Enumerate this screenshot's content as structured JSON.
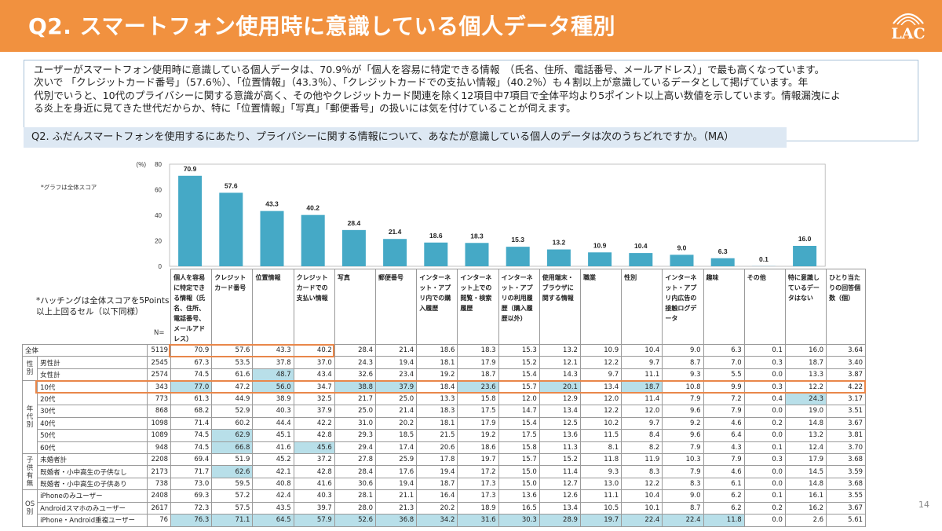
{
  "header": {
    "title": "Q2. スマートフォン使用時に意識している個人データ種別",
    "logo": "LAC"
  },
  "colors": {
    "header_bg": "#f1913f",
    "bar": "#45a9c6",
    "highlight": "#b8dfe9",
    "orange_box": "#e9874a"
  },
  "summary": {
    "lines": [
      "ユーザーがスマートフォン使用時に意識している個人データは、70.9％が「個人を容易に特定できる情報　（氏名、住所、電話番号、メールアドレス）」で最も高くなっています。",
      "次いで 「クレジットカード番号」（57.6％）、「位置情報」（43.3％）、「クレジットカードでの支払い情報」（40.2％）も４割以上が意識しているデータとして掲げています。年",
      "代別でいうと、10代のプライバシーに関する意識が高く、その他やクレジットカード関連を除く12項目中7項目で全体平均より5ポイント以上高い数値を示しています。情報漏洩によ",
      "る炎上を身近に見てきた世代だからか、特に「位置情報」「写真」「郵便番号」の扱いには気を付けていることが伺えます。"
    ]
  },
  "question": "Q2. ふだんスマートフォンを使用するにあたり、プライバシーに関する情報について、あなたが意識している個人のデータは次のうちどれですか。（MA）",
  "notes": {
    "graph_note": "*グラフは全体スコア",
    "hatch_line1": "*ハッチングは全体スコアを5Points",
    "hatch_line2": "以上上回るセル（以下同様）",
    "n_label": "N=",
    "page_number": "14"
  },
  "chart_data": {
    "type": "bar",
    "ylabel": "(%)",
    "ylim": [
      0,
      80
    ],
    "yticks": [
      "0",
      "20",
      "40",
      "60",
      "80"
    ],
    "categories": [
      "個人を容易に特定できる情報（氏名、住所、電話番号、メールアドレス）",
      "クレジットカード番号",
      "位置情報",
      "クレジットカードでの支払い情報",
      "写真",
      "郵便番号",
      "インターネット・アプリ内での購入履歴",
      "インターネット上での閲覧・検索履歴",
      "インターネット・アプリの利用履歴（購入履歴以外）",
      "使用端末・ブラウザに関する情報",
      "職業",
      "性別",
      "インターネット・アプリ内広告の接触ログデータ",
      "趣味",
      "その他",
      "特に意識しているデータはない"
    ],
    "values": [
      70.9,
      57.6,
      43.3,
      40.2,
      28.4,
      21.4,
      18.6,
      18.3,
      15.3,
      13.2,
      10.9,
      10.4,
      9.0,
      6.3,
      0.1,
      16.0
    ],
    "value_labels": [
      "70.9",
      "57.6",
      "43.3",
      "40.2",
      "28.4",
      "21.4",
      "18.6",
      "18.3",
      "15.3",
      "13.2",
      "10.9",
      "10.4",
      "9.0",
      "6.3",
      "0.1",
      "16.0"
    ]
  },
  "table": {
    "headers": [
      "個人を容易に特定できる情報（氏名、住所、電話番号、メールアドレス）",
      "クレジットカード番号",
      "位置情報",
      "クレジットカードでの支払い情報",
      "写真",
      "郵便番号",
      "インターネット・アプリ内での購入履歴",
      "インターネット上での閲覧・検索履歴",
      "インターネット・アプリの利用履歴（購入履歴以外）",
      "使用端末・ブラウザに関する情報",
      "職業",
      "性別",
      "インターネット・アプリ内広告の接触ログデータ",
      "趣味",
      "その他",
      "特に意識しているデータはない",
      "ひとり当たりの回答個数（個）"
    ],
    "groups": [
      {
        "label": "",
        "rows": [
          {
            "label": "全体",
            "n": "5119",
            "values": [
              "70.9",
              "57.6",
              "43.3",
              "40.2",
              "28.4",
              "21.4",
              "18.6",
              "18.3",
              "15.3",
              "13.2",
              "10.9",
              "10.4",
              "9.0",
              "6.3",
              "0.1",
              "16.0",
              "3.64"
            ],
            "hl": []
          }
        ]
      },
      {
        "label": "性別",
        "rows": [
          {
            "label": "男性計",
            "n": "2545",
            "values": [
              "67.3",
              "53.5",
              "37.8",
              "37.0",
              "24.3",
              "19.4",
              "18.1",
              "17.9",
              "15.2",
              "12.1",
              "12.2",
              "9.7",
              "8.7",
              "7.0",
              "0.3",
              "18.7",
              "3.40"
            ],
            "hl": []
          },
          {
            "label": "女性計",
            "n": "2574",
            "values": [
              "74.5",
              "61.6",
              "48.7",
              "43.4",
              "32.6",
              "23.4",
              "19.2",
              "18.7",
              "15.4",
              "14.3",
              "9.7",
              "11.1",
              "9.3",
              "5.5",
              "0.0",
              "13.3",
              "3.87"
            ],
            "hl": [
              2
            ]
          }
        ]
      },
      {
        "label": "年代別",
        "rows": [
          {
            "label": "10代",
            "n": "343",
            "values": [
              "77.0",
              "47.2",
              "56.0",
              "34.7",
              "38.8",
              "37.9",
              "18.4",
              "23.6",
              "15.7",
              "20.1",
              "13.4",
              "18.7",
              "10.8",
              "9.9",
              "0.3",
              "12.2",
              "4.22"
            ],
            "hl": [
              0,
              2,
              4,
              5,
              7,
              9,
              11
            ]
          },
          {
            "label": "20代",
            "n": "773",
            "values": [
              "61.3",
              "44.9",
              "38.9",
              "32.5",
              "21.7",
              "25.0",
              "13.3",
              "15.8",
              "12.0",
              "12.9",
              "12.0",
              "11.4",
              "7.9",
              "7.2",
              "0.4",
              "24.3",
              "3.17"
            ],
            "hl": [
              15
            ]
          },
          {
            "label": "30代",
            "n": "868",
            "values": [
              "68.2",
              "52.9",
              "40.3",
              "37.9",
              "25.0",
              "21.4",
              "18.3",
              "17.5",
              "14.7",
              "13.4",
              "12.2",
              "12.0",
              "9.6",
              "7.9",
              "0.0",
              "19.0",
              "3.51"
            ],
            "hl": []
          },
          {
            "label": "40代",
            "n": "1098",
            "values": [
              "71.4",
              "60.2",
              "44.4",
              "42.2",
              "31.0",
              "20.2",
              "18.1",
              "17.9",
              "15.4",
              "12.5",
              "10.2",
              "9.7",
              "9.2",
              "4.6",
              "0.2",
              "14.8",
              "3.67"
            ],
            "hl": []
          },
          {
            "label": "50代",
            "n": "1089",
            "values": [
              "74.5",
              "62.9",
              "45.1",
              "42.8",
              "29.3",
              "18.5",
              "21.5",
              "19.2",
              "17.5",
              "13.6",
              "11.5",
              "8.4",
              "9.6",
              "6.4",
              "0.0",
              "13.2",
              "3.81"
            ],
            "hl": [
              1
            ]
          },
          {
            "label": "60代",
            "n": "948",
            "values": [
              "74.5",
              "66.8",
              "41.6",
              "45.6",
              "29.4",
              "17.4",
              "20.6",
              "18.6",
              "15.8",
              "11.3",
              "8.1",
              "8.2",
              "7.9",
              "4.3",
              "0.1",
              "12.4",
              "3.70"
            ],
            "hl": [
              1,
              3
            ]
          }
        ]
      },
      {
        "label": "子供有無",
        "rows": [
          {
            "label": "未婚者計",
            "n": "2208",
            "values": [
              "69.4",
              "51.9",
              "45.2",
              "37.2",
              "27.8",
              "25.9",
              "17.8",
              "19.7",
              "15.7",
              "15.2",
              "11.8",
              "11.9",
              "10.3",
              "7.9",
              "0.3",
              "17.9",
              "3.68"
            ],
            "hl": []
          },
          {
            "label": "既婚者・小中高生の子供なし",
            "n": "2173",
            "values": [
              "71.7",
              "62.6",
              "42.1",
              "42.8",
              "28.4",
              "17.6",
              "19.4",
              "17.2",
              "15.0",
              "11.4",
              "9.3",
              "8.3",
              "7.9",
              "4.6",
              "0.0",
              "14.5",
              "3.59"
            ],
            "hl": [
              1
            ]
          },
          {
            "label": "既婚者・小中高生の子供あり",
            "n": "738",
            "values": [
              "73.0",
              "59.5",
              "40.8",
              "41.6",
              "30.6",
              "19.4",
              "18.7",
              "17.3",
              "15.0",
              "12.7",
              "13.0",
              "12.2",
              "8.3",
              "6.1",
              "0.0",
              "14.8",
              "3.68"
            ],
            "hl": []
          }
        ]
      },
      {
        "label": "OS別",
        "rows": [
          {
            "label": "iPhoneのみユーザー",
            "n": "2408",
            "values": [
              "69.3",
              "57.2",
              "42.4",
              "40.3",
              "28.1",
              "21.1",
              "16.4",
              "17.3",
              "13.6",
              "12.6",
              "11.1",
              "10.4",
              "9.0",
              "6.2",
              "0.1",
              "16.1",
              "3.55"
            ],
            "hl": []
          },
          {
            "label": "Androidスマホのみユーザー",
            "n": "2617",
            "values": [
              "72.3",
              "57.5",
              "43.5",
              "39.7",
              "28.0",
              "21.3",
              "20.2",
              "18.9",
              "16.5",
              "13.4",
              "10.5",
              "10.1",
              "8.7",
              "6.2",
              "0.2",
              "16.2",
              "3.67"
            ],
            "hl": []
          },
          {
            "label": "iPhone・Android重複ユーザー",
            "n": "76",
            "values": [
              "76.3",
              "71.1",
              "64.5",
              "57.9",
              "52.6",
              "36.8",
              "34.2",
              "31.6",
              "30.3",
              "28.9",
              "19.7",
              "22.4",
              "22.4",
              "11.8",
              "0.0",
              "2.6",
              "5.61"
            ],
            "hl": [
              0,
              1,
              2,
              3,
              4,
              5,
              6,
              7,
              8,
              9,
              10,
              11,
              12,
              13
            ]
          }
        ]
      }
    ]
  }
}
